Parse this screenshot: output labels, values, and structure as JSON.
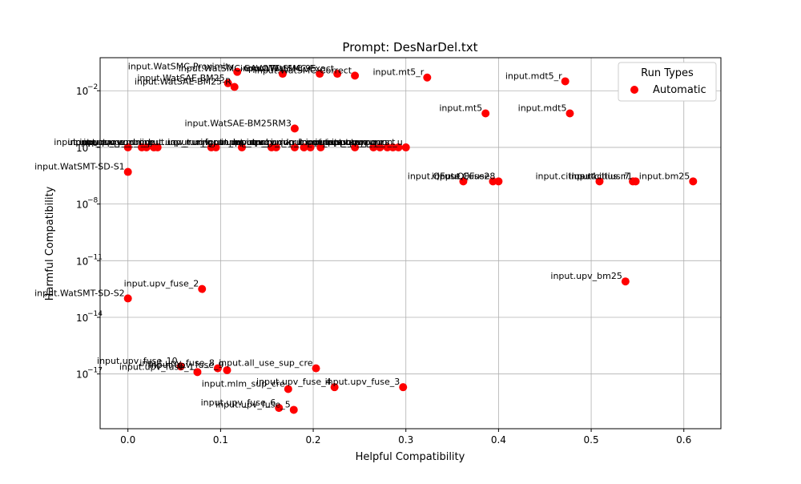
{
  "chart_data": {
    "type": "scatter",
    "title": "Prompt: DesNarDel.txt",
    "xlabel": "Helpful Compatibility",
    "ylabel": "Harmful Compatibility",
    "xlim": [
      -0.03,
      0.64
    ],
    "ylog": true,
    "ylim_exponent": [
      -19.9,
      -0.25
    ],
    "grid": true,
    "xticks": [
      {
        "v": 0.0,
        "label": "0.0"
      },
      {
        "v": 0.1,
        "label": "0.1"
      },
      {
        "v": 0.2,
        "label": "0.2"
      },
      {
        "v": 0.3,
        "label": "0.3"
      },
      {
        "v": 0.4,
        "label": "0.4"
      },
      {
        "v": 0.5,
        "label": "0.5"
      },
      {
        "v": 0.6,
        "label": "0.6"
      }
    ],
    "yticks": [
      {
        "exp": -2,
        "label": "10"
      },
      {
        "exp": -5,
        "label": "10"
      },
      {
        "exp": -8,
        "label": "10"
      },
      {
        "exp": -11,
        "label": "10"
      },
      {
        "exp": -14,
        "label": "10"
      },
      {
        "exp": -17,
        "label": "10"
      }
    ],
    "legend": {
      "title": "Run Types",
      "position": "top-right",
      "entries": [
        {
          "name": "Automatic",
          "color": "#ff0000"
        }
      ]
    },
    "series": [
      {
        "name": "Automatic",
        "color": "#ff0000",
        "points": [
          {
            "label": "input.mt5_r",
            "x": 0.323,
            "yexp": -1.3
          },
          {
            "label": "input.mdt5_r",
            "x": 0.472,
            "yexp": -1.5
          },
          {
            "label": "input.mt5",
            "x": 0.386,
            "yexp": -3.2
          },
          {
            "label": "input.mdt5",
            "x": 0.477,
            "yexp": -3.2
          },
          {
            "label": "input.WatSMC-Correct",
            "x": 0.245,
            "yexp": -1.2
          },
          {
            "label": "input.WatSMC-Exact",
            "x": 0.226,
            "yexp": -1.1
          },
          {
            "label": "input.WatSMC-95",
            "x": 0.207,
            "yexp": -1.1
          },
          {
            "label": "input.WatSMC-GAVOTT",
            "x": 0.167,
            "yexp": -1.1
          },
          {
            "label": "input.WatSMC-Proximity",
            "x": 0.118,
            "yexp": -1.0
          },
          {
            "label": "input.WatSAE-BM25",
            "x": 0.108,
            "yexp": -1.6
          },
          {
            "label": "input.WatSAE-BM25-R",
            "x": 0.115,
            "yexp": -1.8
          },
          {
            "label": "input.WatSAE-BM25RM3",
            "x": 0.18,
            "yexp": -4.0
          },
          {
            "label": "input.WatSMT-SD-S1",
            "x": 0.0,
            "yexp": -6.3
          },
          {
            "label": "input.uqv_run_a",
            "x": 0.0,
            "yexp": -5.0
          },
          {
            "label": "input.uqv_run_b",
            "x": 0.015,
            "yexp": -5.0
          },
          {
            "label": "input.uqv_run_c",
            "x": 0.02,
            "yexp": -5.0
          },
          {
            "label": "input.uqv_run_d",
            "x": 0.028,
            "yexp": -5.0
          },
          {
            "label": "input.uqv_run_e",
            "x": 0.032,
            "yexp": -5.0
          },
          {
            "label": "input.uqv_run_f",
            "x": 0.09,
            "yexp": -5.0
          },
          {
            "label": "input.uqv_run_g",
            "x": 0.095,
            "yexp": -5.0
          },
          {
            "label": "input.uqv_run_h",
            "x": 0.123,
            "yexp": -5.0
          },
          {
            "label": "input.uqv_run_i",
            "x": 0.155,
            "yexp": -5.0
          },
          {
            "label": "input.uqv_run_j",
            "x": 0.16,
            "yexp": -5.0
          },
          {
            "label": "input.uqv_run_k",
            "x": 0.18,
            "yexp": -5.0
          },
          {
            "label": "input.uqv_run_l",
            "x": 0.19,
            "yexp": -5.0
          },
          {
            "label": "input.uqv_run_m",
            "x": 0.197,
            "yexp": -5.0
          },
          {
            "label": "input.uqv_run_n",
            "x": 0.208,
            "yexp": -5.0
          },
          {
            "label": "input.uqv_run_o",
            "x": 0.245,
            "yexp": -5.0
          },
          {
            "label": "input.uqv_run_p",
            "x": 0.265,
            "yexp": -5.0
          },
          {
            "label": "input.uqv_run_q",
            "x": 0.272,
            "yexp": -5.0
          },
          {
            "label": "input.uqv_run_r",
            "x": 0.28,
            "yexp": -5.0
          },
          {
            "label": "input.uqv_run_s",
            "x": 0.286,
            "yexp": -5.0
          },
          {
            "label": "input.uqv_run_t",
            "x": 0.292,
            "yexp": -5.0
          },
          {
            "label": "input.uqv_run_u",
            "x": 0.3,
            "yexp": -5.0
          },
          {
            "label": "input.QFuse",
            "x": 0.362,
            "yexp": -6.8
          },
          {
            "label": "input.QFuse2",
            "x": 0.394,
            "yexp": -6.8
          },
          {
            "label": "input.QFuse8",
            "x": 0.4,
            "yexp": -6.8
          },
          {
            "label": "input.citius.r4",
            "x": 0.509,
            "yexp": -6.8
          },
          {
            "label": "input.citius.r7",
            "x": 0.545,
            "yexp": -6.8
          },
          {
            "label": "input.citius.r1",
            "x": 0.548,
            "yexp": -6.8
          },
          {
            "label": "input.bm25",
            "x": 0.61,
            "yexp": -6.8
          },
          {
            "label": "input.upv_bm25",
            "x": 0.537,
            "yexp": -12.1
          },
          {
            "label": "input.upv_fuse_2",
            "x": 0.08,
            "yexp": -12.5
          },
          {
            "label": "input.WatSMT-SD-S2",
            "x": 0.0,
            "yexp": -13.0
          },
          {
            "label": "input.upv_fuse_10",
            "x": 0.057,
            "yexp": -16.6
          },
          {
            "label": "input.upv_fuse_8",
            "x": 0.097,
            "yexp": -16.7
          },
          {
            "label": "input.upv_fuse_9",
            "x": 0.107,
            "yexp": -16.8
          },
          {
            "label": "input.upv_fuse_1",
            "x": 0.075,
            "yexp": -16.9
          },
          {
            "label": "input.all_use_sup_cre",
            "x": 0.203,
            "yexp": -16.7
          },
          {
            "label": "input.upv_fuse_3",
            "x": 0.297,
            "yexp": -17.7
          },
          {
            "label": "input.upv_fuse_4",
            "x": 0.223,
            "yexp": -17.7
          },
          {
            "label": "input.mlm_sup_cre",
            "x": 0.173,
            "yexp": -17.8
          },
          {
            "label": "input.upv_fuse_6",
            "x": 0.163,
            "yexp": -18.8
          },
          {
            "label": "input.upv_fuse_5",
            "x": 0.179,
            "yexp": -18.9
          }
        ]
      }
    ]
  }
}
